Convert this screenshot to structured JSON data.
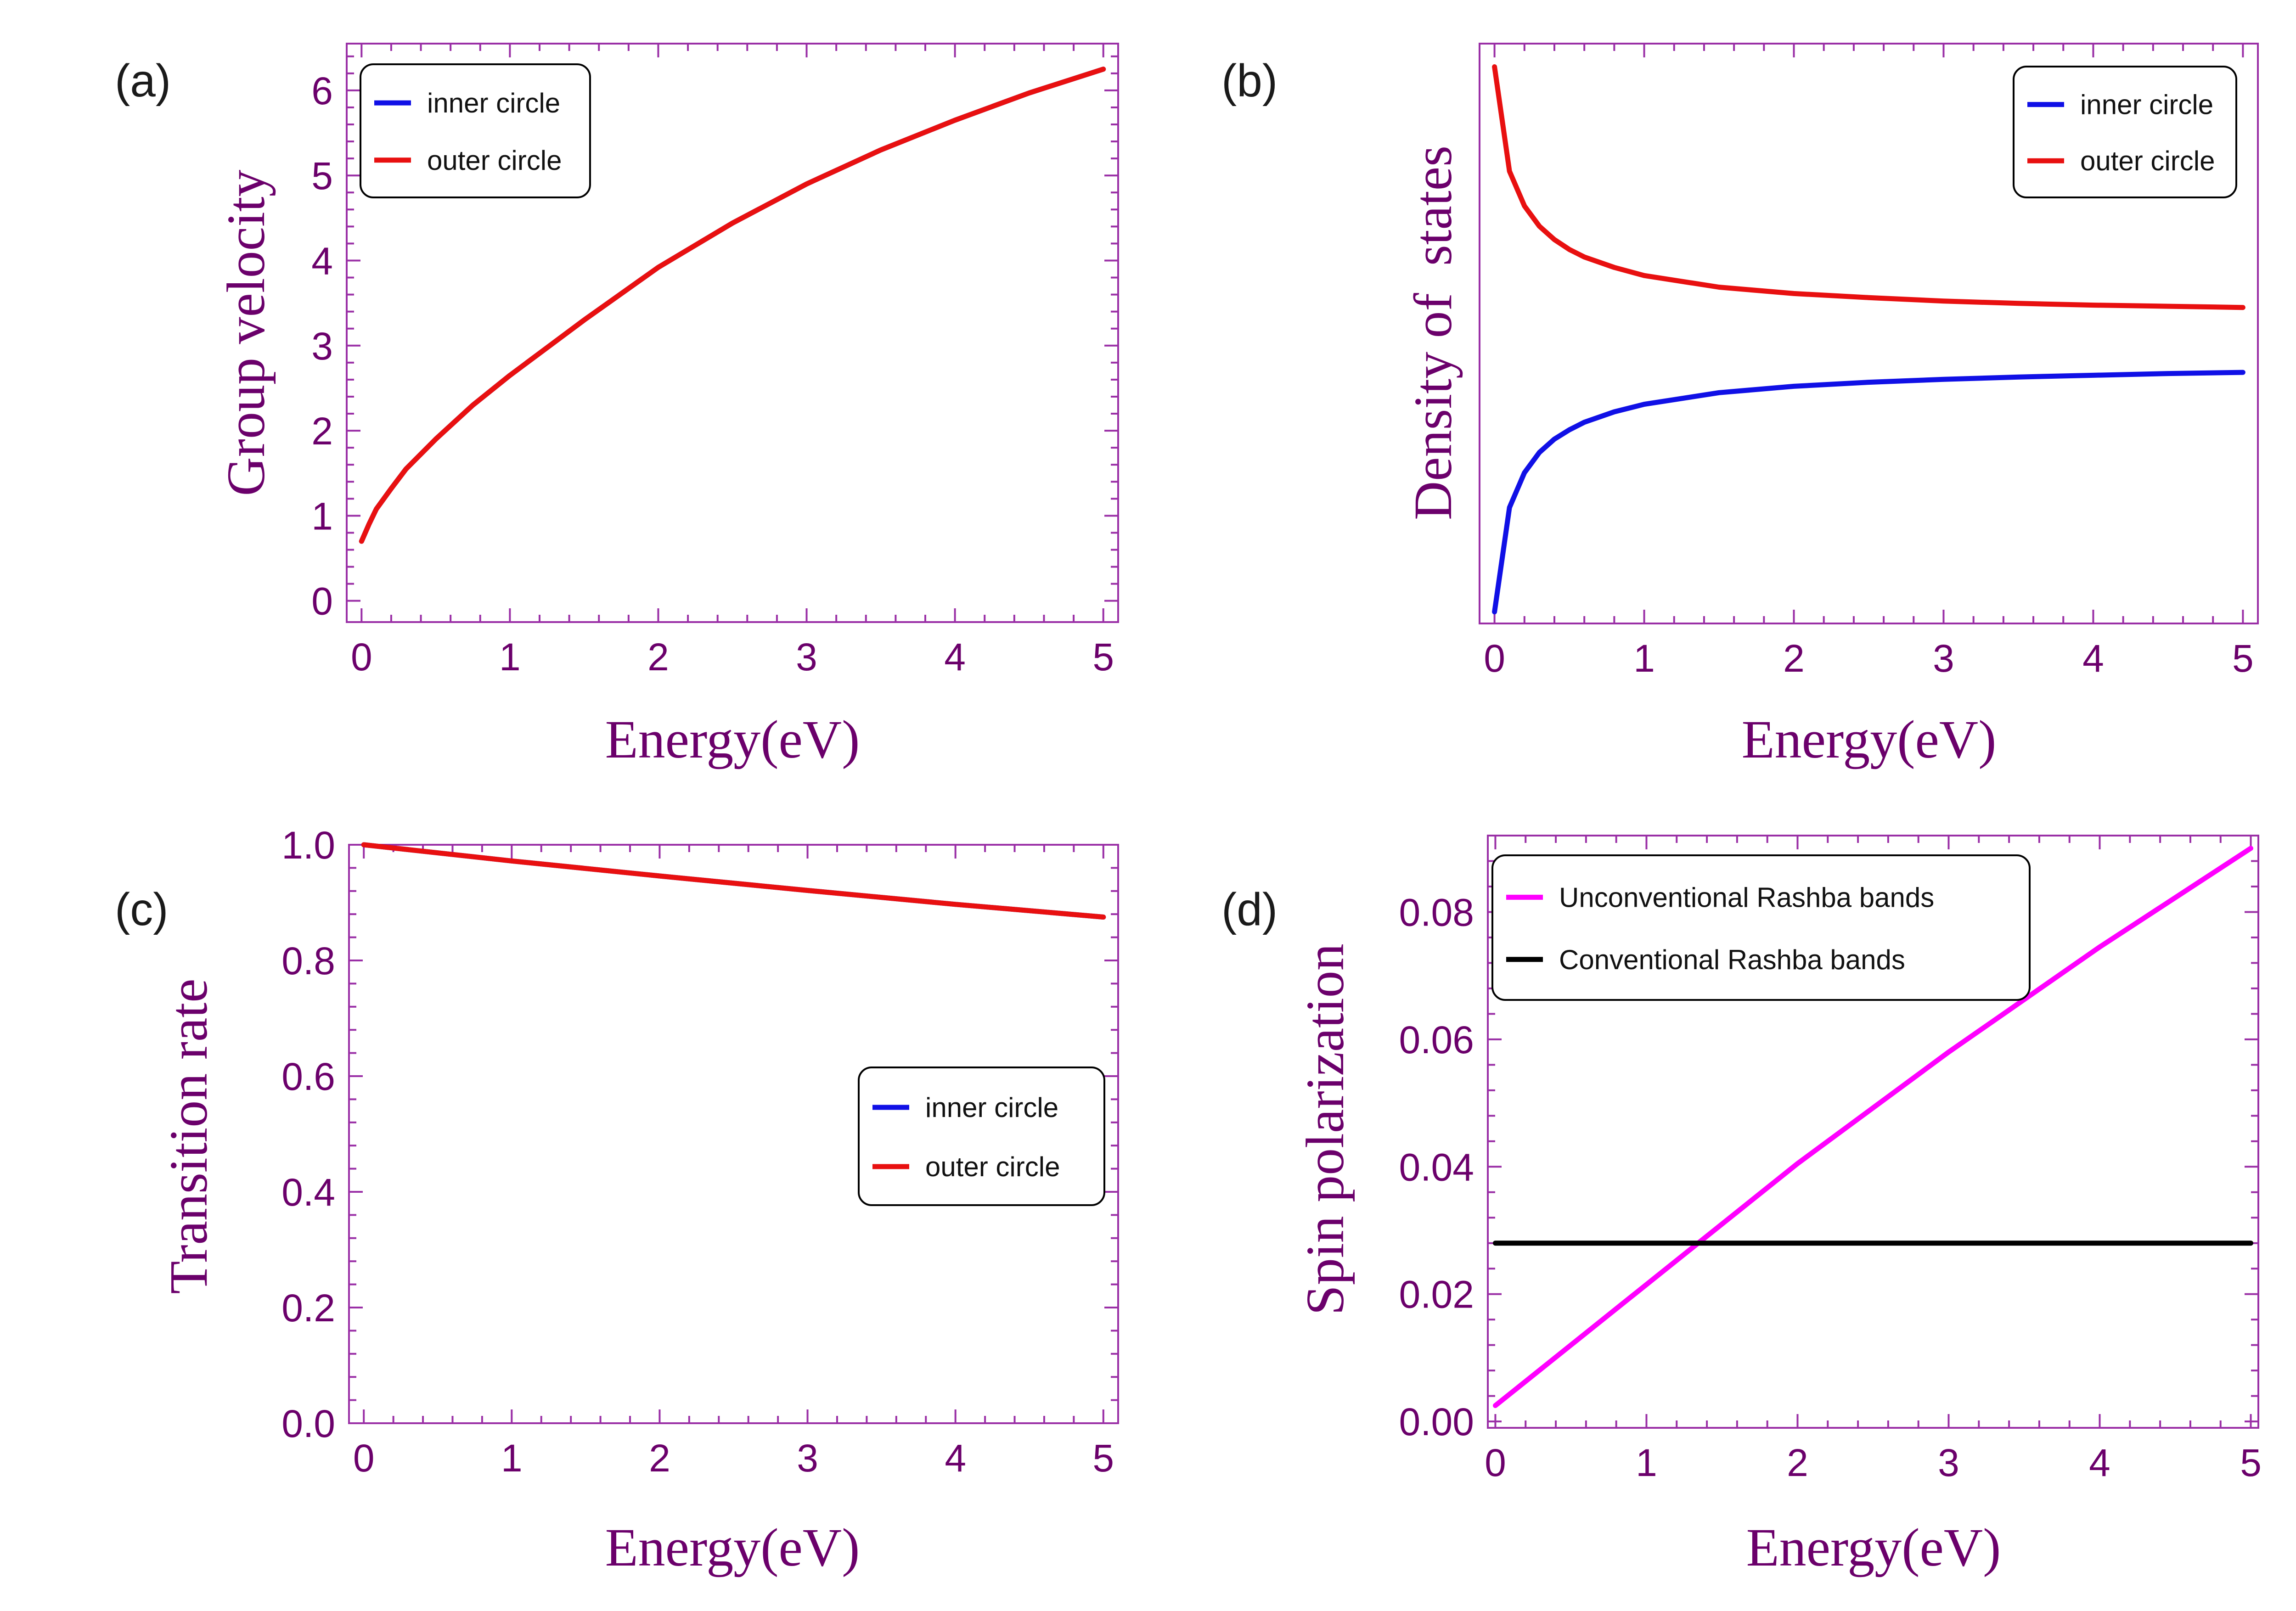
{
  "colors": {
    "axis": "#9a2fa6",
    "label": "#6b006b",
    "inner": "#1010e6",
    "outer": "#e81010",
    "unconventional": "#ff00ff",
    "conventional": "#000000"
  },
  "chart_data": [
    {
      "id": "a",
      "type": "line",
      "panel_label": "(a)",
      "xlabel": "Energy(eV)",
      "ylabel": "Group velocity",
      "xlim": [
        -0.1,
        5.1
      ],
      "ylim": [
        -0.25,
        6.55
      ],
      "xticks": [
        0,
        1,
        2,
        3,
        4,
        5
      ],
      "yticks": [
        0,
        1,
        2,
        3,
        4,
        5,
        6
      ],
      "show_yticklabels": true,
      "legend_position": "top-left",
      "series": [
        {
          "name": "inner circle",
          "color_key": "inner",
          "x": [
            0.0,
            0.05,
            0.1,
            0.2,
            0.3,
            0.5,
            0.75,
            1.0,
            1.5,
            2.0,
            2.5,
            3.0,
            3.5,
            4.0,
            4.5,
            5.0
          ],
          "y": [
            0.7,
            0.9,
            1.08,
            1.32,
            1.55,
            1.9,
            2.3,
            2.65,
            3.3,
            3.92,
            4.44,
            4.9,
            5.3,
            5.65,
            5.97,
            6.25
          ]
        },
        {
          "name": "outer circle",
          "color_key": "outer",
          "x": [
            0.0,
            0.05,
            0.1,
            0.2,
            0.3,
            0.5,
            0.75,
            1.0,
            1.5,
            2.0,
            2.5,
            3.0,
            3.5,
            4.0,
            4.5,
            5.0
          ],
          "y": [
            0.7,
            0.9,
            1.08,
            1.32,
            1.55,
            1.9,
            2.3,
            2.65,
            3.3,
            3.92,
            4.44,
            4.9,
            5.3,
            5.65,
            5.97,
            6.25
          ]
        }
      ]
    },
    {
      "id": "b",
      "type": "line",
      "panel_label": "(b)",
      "xlabel": "Energy(eV)",
      "ylabel": "Density of  states",
      "xlim": [
        -0.1,
        5.1
      ],
      "ylim": [
        0,
        1.0
      ],
      "xticks": [
        0,
        1,
        2,
        3,
        4,
        5
      ],
      "yticks": [],
      "show_yticklabels": false,
      "legend_position": "top-right",
      "series": [
        {
          "name": "inner circle",
          "color_key": "inner",
          "x": [
            0.0,
            0.1,
            0.2,
            0.3,
            0.4,
            0.5,
            0.6,
            0.8,
            1.0,
            1.5,
            2.0,
            2.5,
            3.0,
            3.5,
            4.0,
            4.5,
            5.0
          ],
          "y": [
            0.02,
            0.2,
            0.26,
            0.295,
            0.318,
            0.334,
            0.347,
            0.365,
            0.378,
            0.398,
            0.409,
            0.416,
            0.421,
            0.425,
            0.428,
            0.431,
            0.433
          ]
        },
        {
          "name": "outer circle",
          "color_key": "outer",
          "x": [
            0.0,
            0.1,
            0.2,
            0.3,
            0.4,
            0.5,
            0.6,
            0.8,
            1.0,
            1.5,
            2.0,
            2.5,
            3.0,
            3.5,
            4.0,
            4.5,
            5.0
          ],
          "y": [
            0.96,
            0.78,
            0.72,
            0.685,
            0.662,
            0.645,
            0.632,
            0.614,
            0.6,
            0.58,
            0.569,
            0.562,
            0.556,
            0.552,
            0.549,
            0.547,
            0.545
          ]
        }
      ]
    },
    {
      "id": "c",
      "type": "line",
      "panel_label": "(c)",
      "xlabel": "Energy(eV)",
      "ylabel": "Transition rate",
      "xlim": [
        -0.1,
        5.1
      ],
      "ylim": [
        0,
        1.0
      ],
      "xticks": [
        0,
        1,
        2,
        3,
        4,
        5
      ],
      "yticks": [
        0.0,
        0.2,
        0.4,
        0.6,
        0.8,
        1.0
      ],
      "ytick_labels": [
        "0.0",
        "0.2",
        "0.4",
        "0.6",
        "0.8",
        "1.0"
      ],
      "show_yticklabels": true,
      "legend_position": "right",
      "series": [
        {
          "name": "inner circle",
          "color_key": "inner",
          "x": [
            0,
            1,
            2,
            3,
            4,
            5
          ],
          "y": [
            1.0,
            0.972,
            0.946,
            0.921,
            0.897,
            0.875
          ]
        },
        {
          "name": "outer circle",
          "color_key": "outer",
          "x": [
            0,
            1,
            2,
            3,
            4,
            5
          ],
          "y": [
            1.0,
            0.972,
            0.946,
            0.921,
            0.897,
            0.875
          ]
        }
      ]
    },
    {
      "id": "d",
      "type": "line",
      "panel_label": "(d)",
      "xlabel": "Energy(eV)",
      "ylabel": "Spin polarization",
      "xlim": [
        -0.05,
        5.05
      ],
      "ylim": [
        -0.001,
        0.092
      ],
      "xticks": [
        0,
        1,
        2,
        3,
        4,
        5
      ],
      "yticks": [
        0.0,
        0.02,
        0.04,
        0.06,
        0.08
      ],
      "ytick_labels": [
        "0.00",
        "0.02",
        "0.04",
        "0.06",
        "0.08"
      ],
      "show_yticklabels": true,
      "legend_position": "top-left",
      "series": [
        {
          "name": "Unconventional Rashba bands",
          "color_key": "unconventional",
          "x": [
            0,
            1,
            2,
            3,
            4,
            5
          ],
          "y": [
            0.0025,
            0.0215,
            0.0405,
            0.058,
            0.0745,
            0.09
          ]
        },
        {
          "name": "Conventional Rashba bands",
          "color_key": "conventional",
          "x": [
            0,
            5
          ],
          "y": [
            0.028,
            0.028
          ]
        }
      ]
    }
  ]
}
